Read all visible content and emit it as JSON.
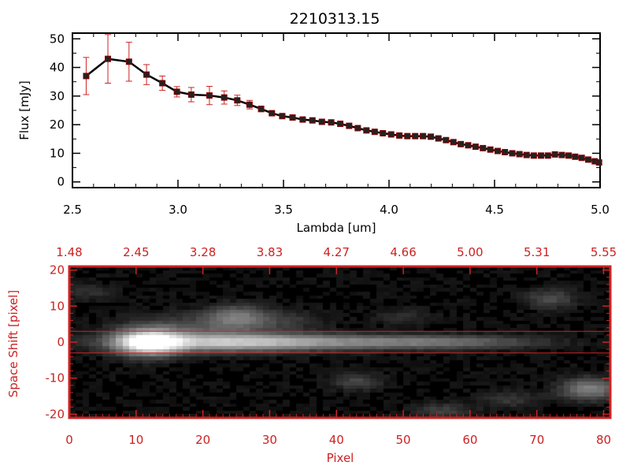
{
  "title": "2210313.15",
  "colors": {
    "axis_top": "#000000",
    "accent": "#cc2222",
    "image_bg": "#000000"
  },
  "chart_data": [
    {
      "type": "line",
      "title": "2210313.15",
      "xlabel": "Lambda [um]",
      "ylabel": "Flux [mJy]",
      "xlim": [
        2.5,
        5.0
      ],
      "ylim": [
        -2,
        52
      ],
      "xticks": [
        "2.5",
        "3.0",
        "3.5",
        "4.0",
        "4.5",
        "5.0"
      ],
      "yticks": [
        "0",
        "10",
        "20",
        "30",
        "40",
        "50"
      ],
      "series": [
        {
          "x": [
            2.565,
            2.668,
            2.768,
            2.851,
            2.926,
            2.995,
            3.063,
            3.149,
            3.219,
            3.281,
            3.339,
            3.394,
            3.445,
            3.494,
            3.543,
            3.591,
            3.637,
            3.682,
            3.726,
            3.769,
            3.811,
            3.852,
            3.893,
            3.932,
            3.971,
            4.01,
            4.049,
            4.087,
            4.124,
            4.161,
            4.198,
            4.234,
            4.27,
            4.305,
            4.34,
            4.375,
            4.41,
            4.445,
            4.48,
            4.515,
            4.549,
            4.584,
            4.618,
            4.652,
            4.686,
            4.72,
            4.753,
            4.786,
            4.819,
            4.851,
            4.882,
            4.913,
            4.944,
            4.975,
            4.995
          ],
          "y": [
            37,
            43,
            42,
            37.5,
            34.5,
            31.5,
            30.5,
            30.2,
            29.5,
            28.5,
            27,
            25.5,
            24,
            23,
            22.5,
            21.8,
            21.5,
            21,
            20.8,
            20.3,
            19.6,
            18.8,
            18,
            17.5,
            17,
            16.6,
            16.2,
            16,
            16,
            16,
            15.8,
            15.2,
            14.6,
            13.9,
            13.2,
            12.8,
            12.3,
            11.8,
            11.3,
            10.8,
            10.4,
            10,
            9.7,
            9.4,
            9.2,
            9.2,
            9.2,
            9.6,
            9.4,
            9.2,
            8.8,
            8.4,
            7.8,
            7.2,
            6.8
          ],
          "yerr": [
            6.5,
            8.5,
            6.8,
            3.5,
            2.5,
            1.8,
            2.5,
            3.2,
            2.3,
            1.8,
            1.5,
            1.0,
            0.6,
            0.5,
            0.5,
            0.5,
            0.5,
            0.5,
            0.5,
            0.5,
            0.5,
            0.5,
            0.5,
            0.5,
            0.5,
            0.5,
            0.5,
            0.5,
            0.5,
            0.5,
            0.5,
            0.5,
            0.5,
            0.5,
            0.5,
            0.5,
            0.5,
            0.5,
            0.5,
            0.5,
            0.5,
            0.5,
            0.5,
            0.5,
            0.5,
            0.5,
            0.5,
            0.5,
            0.5,
            0.5,
            0.5,
            0.5,
            0.5,
            0.5,
            0.5
          ]
        }
      ]
    },
    {
      "type": "heatmap",
      "xlabel": "Pixel",
      "ylabel": "Space Shift [pixel]",
      "xlim": [
        0,
        81
      ],
      "ylim": [
        -21,
        21
      ],
      "xticks": [
        "0",
        "10",
        "20",
        "30",
        "40",
        "50",
        "60",
        "70",
        "80"
      ],
      "yticks": [
        "-20",
        "-10",
        "0",
        "10",
        "20"
      ],
      "top_ticks": [
        "1.48",
        "2.45",
        "3.28",
        "3.83",
        "4.27",
        "4.66",
        "5.00",
        "5.31",
        "5.55"
      ],
      "extraction_window": [
        -3,
        3
      ],
      "blobs": [
        {
          "x": 12,
          "y": 0,
          "sx": 3.2,
          "sy": 2.4,
          "amp": 1.0
        },
        {
          "x": 22,
          "y": 0,
          "sx": 10,
          "sy": 1.8,
          "amp": 0.55
        },
        {
          "x": 40,
          "y": 0,
          "sx": 14,
          "sy": 1.4,
          "amp": 0.35
        },
        {
          "x": 58,
          "y": 0,
          "sx": 9,
          "sy": 1.2,
          "amp": 0.18
        },
        {
          "x": 25,
          "y": 7,
          "sx": 3,
          "sy": 2.2,
          "amp": 0.32
        },
        {
          "x": 19,
          "y": 4.5,
          "sx": 7,
          "sy": 2.4,
          "amp": 0.16
        },
        {
          "x": 32,
          "y": 6,
          "sx": 4,
          "sy": 2,
          "amp": 0.12
        },
        {
          "x": 72,
          "y": 12,
          "sx": 2.5,
          "sy": 1.8,
          "amp": 0.2
        },
        {
          "x": 43,
          "y": -11,
          "sx": 2.5,
          "sy": 1.6,
          "amp": 0.17
        },
        {
          "x": 78,
          "y": -13,
          "sx": 3,
          "sy": 2,
          "amp": 0.4
        },
        {
          "x": 56,
          "y": -19,
          "sx": 3,
          "sy": 1.5,
          "amp": 0.15
        },
        {
          "x": 3,
          "y": 14,
          "sx": 2.5,
          "sy": 1.5,
          "amp": 0.1
        },
        {
          "x": 66,
          "y": -16,
          "sx": 3,
          "sy": 1.5,
          "amp": 0.12
        },
        {
          "x": 50,
          "y": 7,
          "sx": 3,
          "sy": 1.5,
          "amp": 0.08
        }
      ]
    }
  ]
}
